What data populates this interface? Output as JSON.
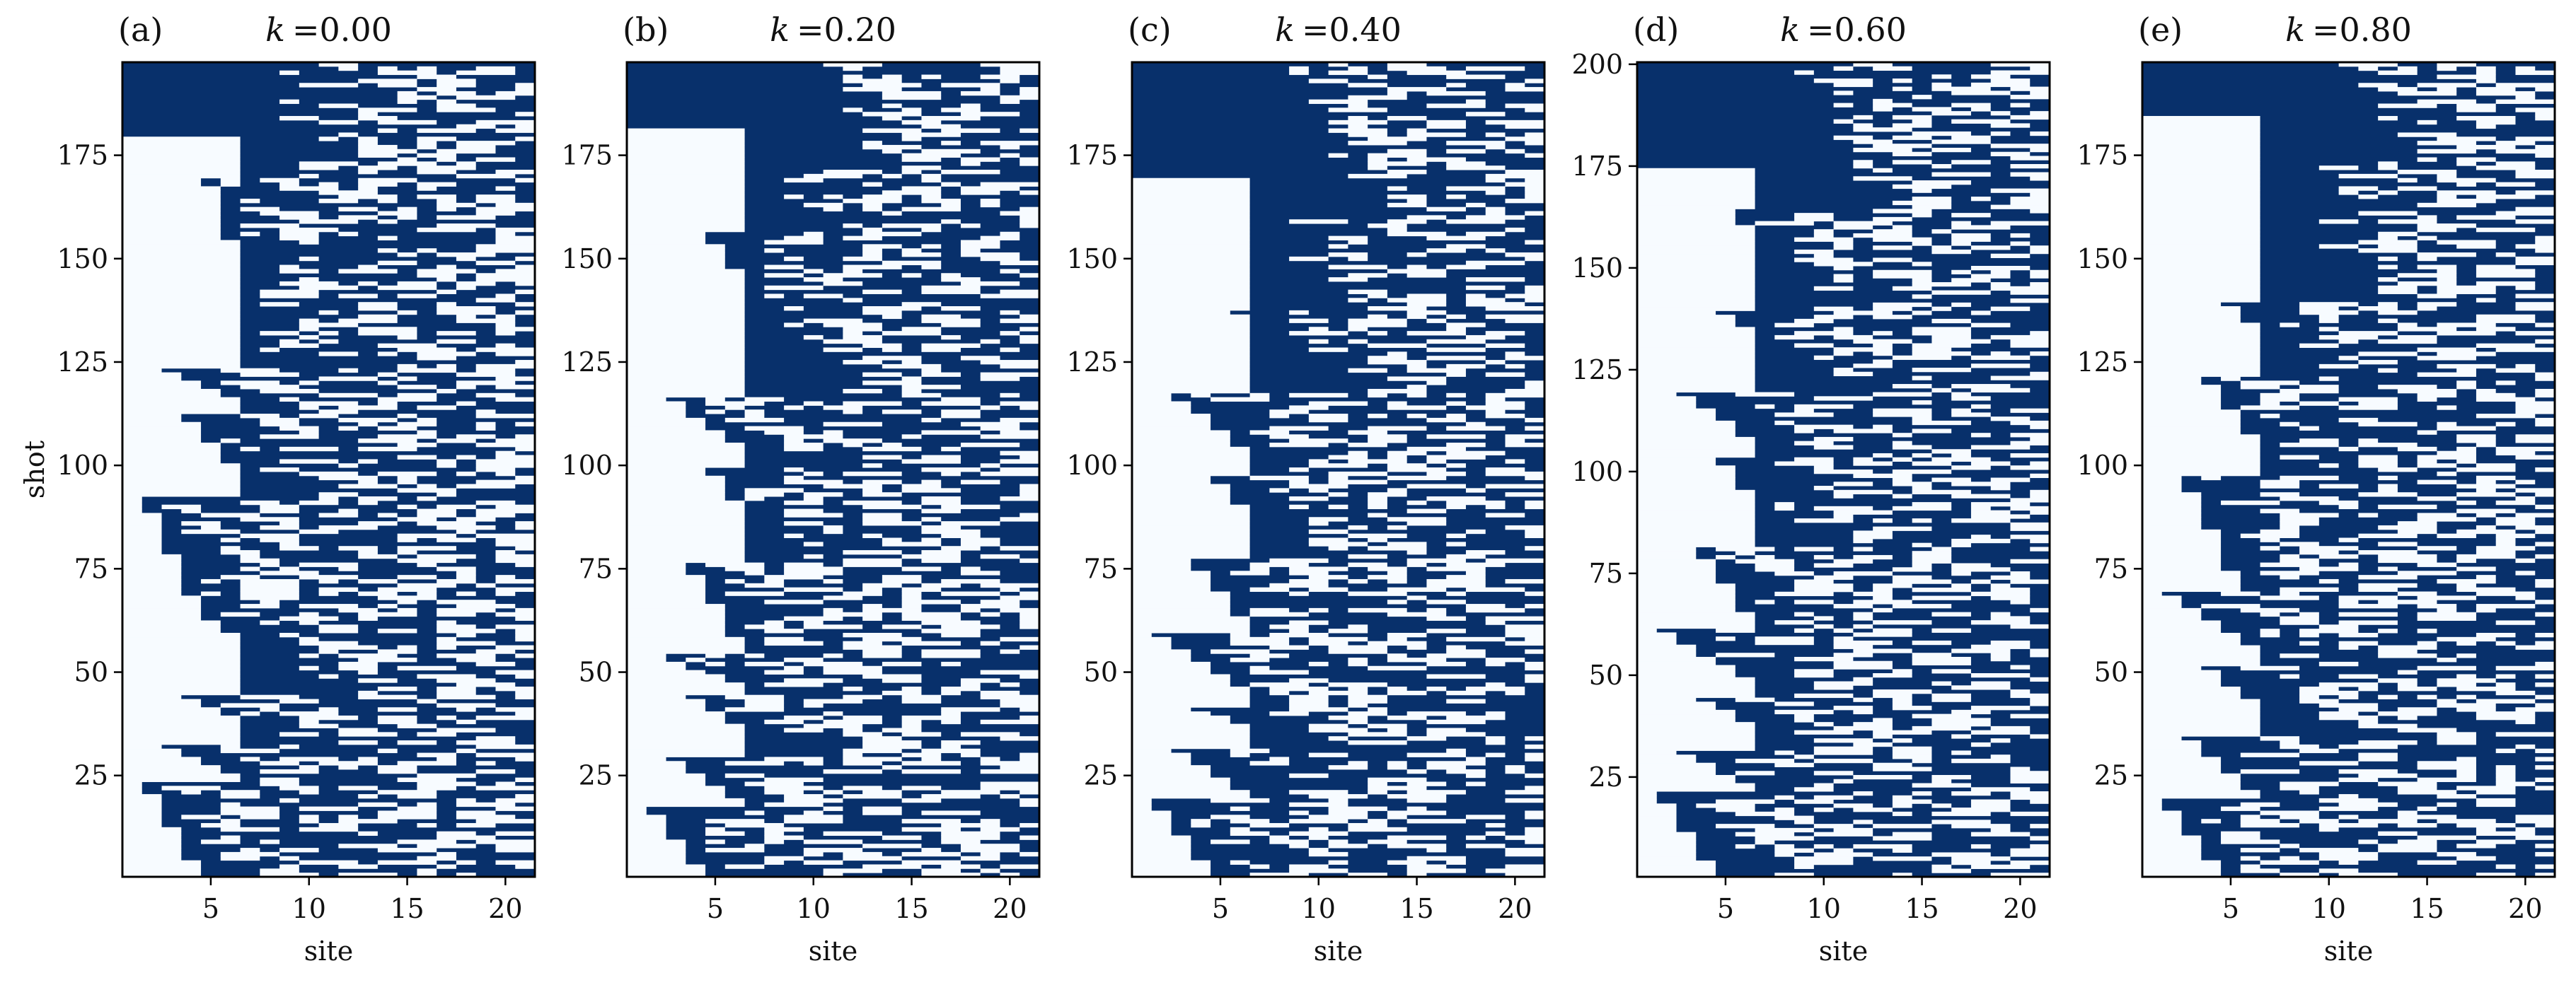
{
  "figure": {
    "colors": {
      "filled": "#08306b",
      "empty": "#f7fbff",
      "frame": "#000000"
    }
  },
  "chart_data": [
    {
      "type": "heatmap",
      "panel_label": "(a)",
      "title_var": "k",
      "title_value": "=0.00",
      "xlabel": "site",
      "ylabel": "shot",
      "xlim": [
        1,
        21
      ],
      "ylim": [
        1,
        197
      ],
      "xticks": [
        "5",
        "10",
        "15",
        "20"
      ],
      "yticks": [
        "25",
        "50",
        "75",
        "100",
        "125",
        "150",
        "175"
      ],
      "empty_boundary": {
        "description": "light region at low site index, rows by shot",
        "shot_breaks": [
          1,
          24,
          33,
          45,
          64,
          93,
          113,
          124,
          157,
          170,
          197
        ],
        "left_edge_site": [
          1,
          2,
          3,
          4,
          1,
          3,
          2,
          5,
          4,
          6,
          8
        ]
      }
    },
    {
      "type": "heatmap",
      "panel_label": "(b)",
      "title_var": "k",
      "title_value": "=0.20",
      "xlabel": "site",
      "ylabel": "",
      "xlim": [
        1,
        21
      ],
      "ylim": [
        1,
        197
      ],
      "xticks": [
        "5",
        "10",
        "15",
        "20"
      ],
      "yticks": [
        "25",
        "50",
        "75",
        "100",
        "125",
        "150",
        "175"
      ],
      "empty_boundary": {
        "shot_breaks": [
          1,
          18,
          30,
          45,
          55,
          77,
          100,
          117,
          157,
          172,
          197
        ],
        "left_edge_site": [
          1,
          2,
          3,
          1,
          3,
          4,
          2,
          4,
          6,
          8,
          10
        ]
      }
    },
    {
      "type": "heatmap",
      "panel_label": "(c)",
      "title_var": "k",
      "title_value": "=0.40",
      "xlabel": "site",
      "ylabel": "",
      "xlim": [
        1,
        21
      ],
      "ylim": [
        1,
        197
      ],
      "xticks": [
        "5",
        "10",
        "15",
        "20"
      ],
      "yticks": [
        "25",
        "50",
        "75",
        "100",
        "125",
        "150",
        "175"
      ],
      "empty_boundary": {
        "shot_breaks": [
          1,
          20,
          32,
          42,
          60,
          78,
          98,
          118,
          138,
          160,
          197
        ],
        "left_edge_site": [
          1,
          2,
          3,
          1,
          3,
          4,
          2,
          5,
          6,
          7,
          9
        ]
      }
    },
    {
      "type": "heatmap",
      "panel_label": "(d)",
      "title_var": "k",
      "title_value": "=0.60",
      "xlabel": "site",
      "ylabel": "",
      "xlim": [
        1,
        21
      ],
      "ylim": [
        1,
        200
      ],
      "xticks": [
        "5",
        "10",
        "15",
        "20"
      ],
      "yticks": [
        "25",
        "50",
        "75",
        "100",
        "125",
        "150",
        "175",
        "200"
      ],
      "empty_boundary": {
        "shot_breaks": [
          1,
          22,
          32,
          45,
          62,
          82,
          104,
          120,
          140,
          165,
          200
        ],
        "left_edge_site": [
          1,
          2,
          3,
          1,
          3,
          4,
          2,
          4,
          5,
          7,
          9
        ]
      }
    },
    {
      "type": "heatmap",
      "panel_label": "(e)",
      "title_var": "k",
      "title_value": "=0.80",
      "xlabel": "site",
      "ylabel": "",
      "xlim": [
        1,
        21
      ],
      "ylim": [
        1,
        197
      ],
      "xticks": [
        "5",
        "10",
        "15",
        "20"
      ],
      "yticks": [
        "25",
        "50",
        "75",
        "100",
        "125",
        "150",
        "175"
      ],
      "empty_boundary": {
        "shot_breaks": [
          1,
          20,
          35,
          52,
          70,
          98,
          122,
          140,
          160,
          175,
          197
        ],
        "left_edge_site": [
          1,
          2,
          3,
          1,
          2,
          3,
          4,
          6,
          7,
          9,
          11
        ]
      }
    }
  ]
}
